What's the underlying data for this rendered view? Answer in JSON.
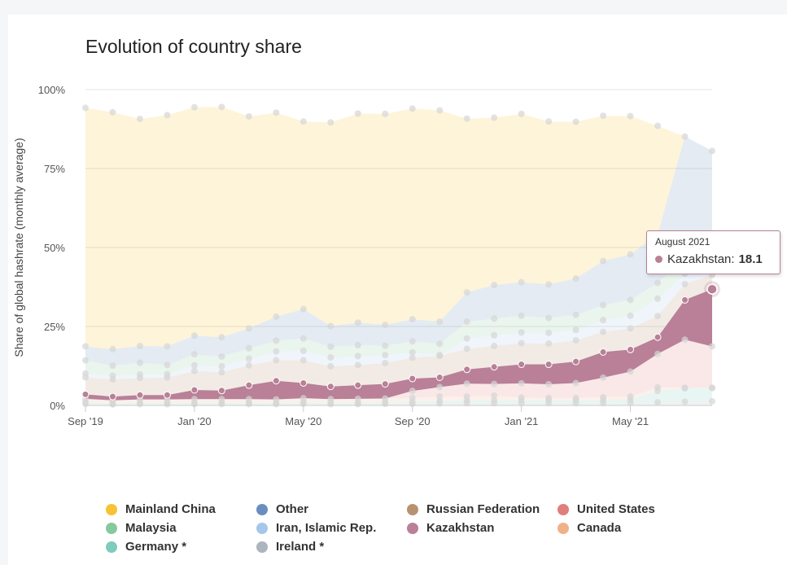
{
  "title": "Evolution of country share",
  "chart_data": {
    "type": "area",
    "stacking": "percent",
    "title": "Evolution of country share",
    "ylabel": "Share of global hashrate (monthly average)",
    "xlabel": "",
    "ylim": [
      0,
      100
    ],
    "y_ticks": [
      "0%",
      "25%",
      "50%",
      "75%",
      "100%"
    ],
    "x_ticks": [
      "Sep '19",
      "Jan '20",
      "May '20",
      "Sep '20",
      "Jan '21",
      "May '21"
    ],
    "x": [
      "Sep 2019",
      "Oct 2019",
      "Nov 2019",
      "Dec 2019",
      "Jan 2020",
      "Feb 2020",
      "Mar 2020",
      "Apr 2020",
      "May 2020",
      "Jun 2020",
      "Jul 2020",
      "Aug 2020",
      "Sep 2020",
      "Oct 2020",
      "Nov 2020",
      "Dec 2020",
      "Jan 2021",
      "Feb 2021",
      "Mar 2021",
      "Apr 2021",
      "May 2021",
      "Jun 2021",
      "Jul 2021",
      "Aug 2021"
    ],
    "legend_position": "bottom",
    "grid": true,
    "series": [
      {
        "name": "Ireland *",
        "color": "#acb4bd",
        "values": [
          0.5,
          0.3,
          0.4,
          0.4,
          0.4,
          0.4,
          0.4,
          0.4,
          0.5,
          0.4,
          0.4,
          0.5,
          0.5,
          0.6,
          0.7,
          0.7,
          0.7,
          0.7,
          0.7,
          0.7,
          0.8,
          1.0,
          1.2,
          1.3
        ]
      },
      {
        "name": "Germany *",
        "color": "#7fcbbd",
        "values": [
          0.5,
          0.4,
          0.5,
          0.5,
          0.5,
          0.5,
          0.5,
          0.5,
          0.6,
          0.6,
          0.6,
          0.6,
          0.7,
          0.8,
          0.9,
          0.9,
          1.0,
          1.0,
          1.0,
          1.0,
          1.1,
          3.6,
          4.2,
          4.2
        ]
      },
      {
        "name": "Canada",
        "color": "#f0b189",
        "values": [
          1.1,
          0.9,
          1.0,
          1.0,
          1.1,
          1.1,
          1.1,
          1.0,
          1.2,
          1.0,
          1.1,
          1.1,
          1.2,
          1.4,
          1.2,
          1.5,
          0.8,
          0.7,
          0.7,
          0.9,
          0.9,
          1.1,
          0.2,
          0.1
        ]
      },
      {
        "name": "United States",
        "color": "#e07e7b",
        "values": [
          0.0,
          0.0,
          0.0,
          0.0,
          0.0,
          0.0,
          0.0,
          0.0,
          0.0,
          0.0,
          0.0,
          0.0,
          2.2,
          3.0,
          4.1,
          3.7,
          4.5,
          4.3,
          4.7,
          6.2,
          7.9,
          10.6,
          15.2,
          13.1
        ]
      },
      {
        "name": "Kazakhstan",
        "color": "#b98098",
        "values": [
          1.4,
          1.2,
          1.4,
          1.4,
          2.9,
          2.7,
          4.4,
          5.9,
          4.8,
          4.0,
          4.3,
          4.6,
          3.9,
          3.1,
          4.5,
          5.4,
          6.0,
          6.3,
          6.8,
          8.1,
          7.0,
          5.3,
          12.6,
          18.1
        ]
      },
      {
        "name": "Russian Federation",
        "color": "#b89270",
        "values": [
          5.4,
          5.4,
          5.4,
          5.5,
          6.0,
          5.8,
          6.3,
          6.5,
          7.2,
          6.4,
          6.4,
          6.6,
          6.6,
          6.8,
          6.5,
          6.6,
          6.7,
          6.6,
          6.7,
          6.4,
          6.7,
          6.7,
          5.0,
          4.5
        ]
      },
      {
        "name": "Iran, Islamic Rep.",
        "color": "#a6c6ea",
        "values": [
          1.2,
          1.2,
          1.1,
          1.1,
          1.8,
          1.9,
          2.1,
          2.8,
          3.0,
          2.8,
          2.8,
          2.5,
          1.7,
          0.2,
          3.3,
          3.4,
          3.4,
          3.4,
          3.3,
          3.7,
          4.0,
          5.5,
          3.3,
          3.0
        ]
      },
      {
        "name": "Malaysia",
        "color": "#86c99d",
        "values": [
          4.2,
          3.2,
          3.7,
          2.9,
          3.5,
          3.1,
          3.3,
          3.4,
          3.9,
          3.4,
          3.5,
          3.0,
          3.5,
          3.6,
          5.3,
          5.3,
          5.3,
          4.7,
          4.8,
          4.8,
          5.0,
          5.0,
          4.8,
          5.0
        ]
      },
      {
        "name": "Other",
        "color": "#6a8ebf",
        "values": [
          4.4,
          5.2,
          5.3,
          5.9,
          5.9,
          6.1,
          6.3,
          7.6,
          9.3,
          6.5,
          7.1,
          6.6,
          7.0,
          7.0,
          9.3,
          10.6,
          10.6,
          10.6,
          11.5,
          13.9,
          14.4,
          15.4,
          38.6,
          31.3
        ]
      },
      {
        "name": "Mainland China",
        "color": "#f7c233",
        "values": [
          75.5,
          75.0,
          71.9,
          73.2,
          72.3,
          72.9,
          67.1,
          64.6,
          59.4,
          64.5,
          66.2,
          66.8,
          66.7,
          66.9,
          55.0,
          53.0,
          53.3,
          51.6,
          49.6,
          46.0,
          43.8,
          34.3,
          0.0,
          0.0
        ]
      }
    ]
  },
  "legend": {
    "items": [
      {
        "label": "Mainland China",
        "color": "#f7c233"
      },
      {
        "label": "Other",
        "color": "#6a8ebf"
      },
      {
        "label": "Russian Federation",
        "color": "#b89270"
      },
      {
        "label": "United States",
        "color": "#e07e7b"
      },
      {
        "label": "Malaysia",
        "color": "#86c99d"
      },
      {
        "label": "Iran, Islamic Rep.",
        "color": "#a6c6ea"
      },
      {
        "label": "Kazakhstan",
        "color": "#b98098"
      },
      {
        "label": "Canada",
        "color": "#f0b189"
      },
      {
        "label": "Germany *",
        "color": "#7fcbbd"
      },
      {
        "label": "Ireland *",
        "color": "#acb4bd"
      }
    ]
  },
  "tooltip": {
    "period": "August 2021",
    "series": "Kazakhstan",
    "separator": ":",
    "value": "18.1",
    "color": "#b98098"
  },
  "highlight": {
    "series": "Kazakhstan",
    "index": 23
  }
}
